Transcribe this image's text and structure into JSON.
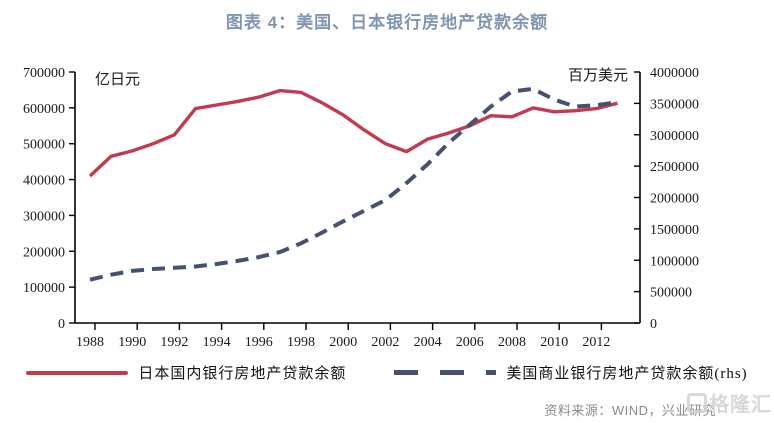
{
  "title": "图表 4：美国、日本银行房地产贷款余额",
  "source_note": "资料来源：WIND，兴业研究",
  "watermark": "格隆汇",
  "colors": {
    "title": "#8096b0",
    "japan_line": "#c13a4f",
    "us_line": "#46516e",
    "axis": "#000000",
    "source_text": "#8a8a8a"
  },
  "chart_data": {
    "type": "line",
    "x": [
      1988,
      1989,
      1990,
      1991,
      1992,
      1993,
      1994,
      1995,
      1996,
      1997,
      1998,
      1999,
      2000,
      2001,
      2002,
      2003,
      2004,
      2005,
      2006,
      2007,
      2008,
      2009,
      2010,
      2011,
      2012,
      2013
    ],
    "x_tick_labels": [
      "1988",
      "1990",
      "1992",
      "1994",
      "1996",
      "1998",
      "2000",
      "2002",
      "2004",
      "2006",
      "2008",
      "2010",
      "2012"
    ],
    "y_left": {
      "unit": "亿日元",
      "min": 0,
      "max": 700000,
      "step": 100000,
      "tick_labels": [
        "0",
        "100000",
        "200000",
        "300000",
        "400000",
        "500000",
        "600000",
        "700000"
      ]
    },
    "y_right": {
      "unit": "百万美元",
      "min": 0,
      "max": 4000000,
      "step": 500000,
      "tick_labels": [
        "0",
        "500000",
        "1000000",
        "1500000",
        "2000000",
        "2500000",
        "3000000",
        "3500000",
        "4000000"
      ]
    },
    "series": [
      {
        "name": "日本国内银行房地产贷款余额",
        "axis": "left",
        "style": "solid",
        "color": "#c13a4f",
        "values": [
          410000,
          465000,
          480000,
          500000,
          525000,
          598000,
          608000,
          618000,
          630000,
          648000,
          643000,
          614000,
          580000,
          538000,
          500000,
          478000,
          513000,
          530000,
          550000,
          578000,
          575000,
          600000,
          589000,
          592000,
          598000,
          613000
        ]
      },
      {
        "name": "美国商业银行房地产贷款余额(rhs)",
        "axis": "right",
        "style": "dashed",
        "color": "#46516e",
        "values": [
          690000,
          770000,
          830000,
          860000,
          880000,
          900000,
          940000,
          990000,
          1050000,
          1130000,
          1270000,
          1440000,
          1620000,
          1790000,
          1960000,
          2230000,
          2530000,
          2870000,
          3160000,
          3450000,
          3690000,
          3730000,
          3560000,
          3450000,
          3470000,
          3520000
        ]
      }
    ],
    "legend_position": "bottom",
    "grid": false
  }
}
